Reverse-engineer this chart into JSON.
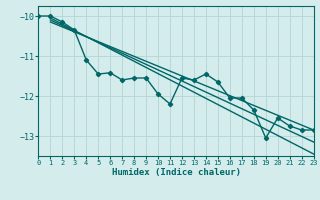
{
  "xlabel": "Humidex (Indice chaleur)",
  "bg_color": "#d4ecec",
  "grid_color": "#b8d8d8",
  "line_color": "#006666",
  "xlim": [
    0,
    23
  ],
  "ylim": [
    -13.5,
    -9.75
  ],
  "yticks": [
    -13,
    -12,
    -11,
    -10
  ],
  "xticks": [
    0,
    1,
    2,
    3,
    4,
    5,
    6,
    7,
    8,
    9,
    10,
    11,
    12,
    13,
    14,
    15,
    16,
    17,
    18,
    19,
    20,
    21,
    22,
    23
  ],
  "series": [
    [
      0,
      -10.0
    ],
    [
      1,
      -10.0
    ],
    [
      2,
      -10.15
    ],
    [
      3,
      -10.35
    ],
    [
      4,
      -11.1
    ],
    [
      5,
      -11.45
    ],
    [
      6,
      -11.42
    ],
    [
      7,
      -11.6
    ],
    [
      8,
      -11.55
    ],
    [
      9,
      -11.55
    ],
    [
      10,
      -11.95
    ],
    [
      11,
      -12.2
    ],
    [
      12,
      -11.55
    ],
    [
      13,
      -11.6
    ],
    [
      14,
      -11.45
    ],
    [
      15,
      -11.65
    ],
    [
      16,
      -12.05
    ],
    [
      17,
      -12.05
    ],
    [
      18,
      -12.35
    ],
    [
      19,
      -13.05
    ],
    [
      20,
      -12.55
    ],
    [
      21,
      -12.75
    ],
    [
      22,
      -12.85
    ],
    [
      23,
      -12.85
    ]
  ],
  "straight_lines": [
    {
      "x0": 1,
      "y0": -10.05,
      "x1": 23,
      "y1": -13.45
    },
    {
      "x0": 1,
      "y0": -10.1,
      "x1": 23,
      "y1": -13.15
    },
    {
      "x0": 1,
      "y0": -10.15,
      "x1": 23,
      "y1": -12.85
    }
  ]
}
